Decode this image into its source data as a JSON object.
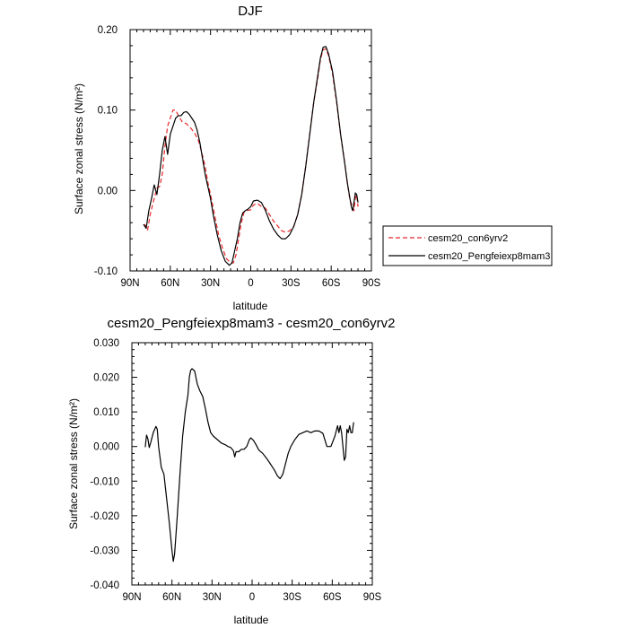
{
  "chart_data": [
    {
      "type": "line",
      "title": "DJF",
      "xlabel": "latitude",
      "ylabel": "Surface zonal stress (N/m²)",
      "xlim": [
        90,
        -90
      ],
      "ylim": [
        -0.1,
        0.2
      ],
      "x_ticks": [
        {
          "value": 90,
          "label": "90N"
        },
        {
          "value": 60,
          "label": "60N"
        },
        {
          "value": 30,
          "label": "30N"
        },
        {
          "value": 0,
          "label": "0"
        },
        {
          "value": -30,
          "label": "30S"
        },
        {
          "value": -60,
          "label": "60S"
        },
        {
          "value": -90,
          "label": "90S"
        }
      ],
      "y_ticks": [
        {
          "value": -0.1,
          "label": "-0.10"
        },
        {
          "value": 0.0,
          "label": "0.00"
        },
        {
          "value": 0.1,
          "label": "0.10"
        },
        {
          "value": 0.2,
          "label": "0.20"
        }
      ],
      "legend_position": "right",
      "series": [
        {
          "name": "cesm20_con6yrv2",
          "color": "#e8282a",
          "dash": true,
          "points": [
            [
              79,
              -0.042
            ],
            [
              77,
              -0.05
            ],
            [
              75,
              -0.03
            ],
            [
              72,
              -0.01
            ],
            [
              70,
              0.003
            ],
            [
              68,
              0.005
            ],
            [
              66,
              0.02
            ],
            [
              64,
              0.055
            ],
            [
              62,
              0.08
            ],
            [
              60,
              0.09
            ],
            [
              58,
              0.1
            ],
            [
              56,
              0.1
            ],
            [
              54,
              0.093
            ],
            [
              51,
              0.085
            ],
            [
              48,
              0.083
            ],
            [
              45,
              0.078
            ],
            [
              42,
              0.072
            ],
            [
              39,
              0.062
            ],
            [
              37,
              0.05
            ],
            [
              34,
              0.03
            ],
            [
              32,
              0.01
            ],
            [
              30,
              -0.005
            ],
            [
              27,
              -0.03
            ],
            [
              24,
              -0.055
            ],
            [
              21,
              -0.072
            ],
            [
              18,
              -0.085
            ],
            [
              15,
              -0.09
            ],
            [
              13,
              -0.09
            ],
            [
              11,
              -0.08
            ],
            [
              9,
              -0.06
            ],
            [
              7,
              -0.04
            ],
            [
              5,
              -0.027
            ],
            [
              3,
              -0.025
            ],
            [
              0,
              -0.024
            ],
            [
              -2,
              -0.018
            ],
            [
              -5,
              -0.016
            ],
            [
              -8,
              -0.02
            ],
            [
              -11,
              -0.022
            ],
            [
              -14,
              -0.03
            ],
            [
              -17,
              -0.038
            ],
            [
              -20,
              -0.044
            ],
            [
              -23,
              -0.05
            ],
            [
              -26,
              -0.052
            ],
            [
              -29,
              -0.05
            ],
            [
              -32,
              -0.045
            ],
            [
              -35,
              -0.03
            ],
            [
              -38,
              -0.005
            ],
            [
              -41,
              0.03
            ],
            [
              -44,
              0.07
            ],
            [
              -47,
              0.11
            ],
            [
              -50,
              0.14
            ],
            [
              -52,
              0.163
            ],
            [
              -54,
              0.175
            ],
            [
              -56,
              0.176
            ],
            [
              -58,
              0.168
            ],
            [
              -61,
              0.145
            ],
            [
              -64,
              0.11
            ],
            [
              -67,
              0.07
            ],
            [
              -70,
              0.035
            ],
            [
              -72,
              0.01
            ],
            [
              -74,
              -0.012
            ],
            [
              -76,
              -0.02
            ],
            [
              -77,
              -0.025
            ],
            [
              -78,
              -0.01
            ],
            [
              -79,
              -0.005
            ],
            [
              -80,
              -0.02
            ]
          ]
        },
        {
          "name": "cesm20_Pengfeiexp8mam3",
          "color": "#000000",
          "dash": false,
          "points": [
            [
              80,
              -0.042
            ],
            [
              78,
              -0.047
            ],
            [
              76,
              -0.025
            ],
            [
              74,
              -0.01
            ],
            [
              72,
              0.007
            ],
            [
              70,
              -0.005
            ],
            [
              68,
              0.02
            ],
            [
              66,
              0.05
            ],
            [
              64,
              0.067
            ],
            [
              62,
              0.045
            ],
            [
              60,
              0.07
            ],
            [
              58,
              0.08
            ],
            [
              56,
              0.09
            ],
            [
              54,
              0.093
            ],
            [
              52,
              0.093
            ],
            [
              50,
              0.097
            ],
            [
              48,
              0.098
            ],
            [
              46,
              0.095
            ],
            [
              44,
              0.09
            ],
            [
              42,
              0.085
            ],
            [
              40,
              0.075
            ],
            [
              38,
              0.06
            ],
            [
              36,
              0.04
            ],
            [
              34,
              0.02
            ],
            [
              32,
              0.005
            ],
            [
              30,
              -0.01
            ],
            [
              28,
              -0.03
            ],
            [
              25,
              -0.055
            ],
            [
              22,
              -0.075
            ],
            [
              19,
              -0.088
            ],
            [
              16,
              -0.093
            ],
            [
              14,
              -0.09
            ],
            [
              12,
              -0.075
            ],
            [
              10,
              -0.06
            ],
            [
              8,
              -0.04
            ],
            [
              6,
              -0.028
            ],
            [
              4,
              -0.025
            ],
            [
              2,
              -0.023
            ],
            [
              0,
              -0.02
            ],
            [
              -2,
              -0.013
            ],
            [
              -5,
              -0.012
            ],
            [
              -8,
              -0.015
            ],
            [
              -11,
              -0.025
            ],
            [
              -14,
              -0.038
            ],
            [
              -17,
              -0.048
            ],
            [
              -20,
              -0.055
            ],
            [
              -23,
              -0.06
            ],
            [
              -26,
              -0.06
            ],
            [
              -29,
              -0.055
            ],
            [
              -32,
              -0.045
            ],
            [
              -35,
              -0.03
            ],
            [
              -38,
              -0.005
            ],
            [
              -41,
              0.03
            ],
            [
              -44,
              0.07
            ],
            [
              -47,
              0.11
            ],
            [
              -50,
              0.143
            ],
            [
              -52,
              0.165
            ],
            [
              -54,
              0.178
            ],
            [
              -56,
              0.179
            ],
            [
              -58,
              0.17
            ],
            [
              -61,
              0.148
            ],
            [
              -64,
              0.112
            ],
            [
              -67,
              0.07
            ],
            [
              -70,
              0.035
            ],
            [
              -72,
              0.01
            ],
            [
              -74,
              -0.01
            ],
            [
              -75,
              -0.02
            ],
            [
              -76,
              -0.025
            ],
            [
              -77,
              -0.015
            ],
            [
              -78,
              -0.003
            ],
            [
              -79,
              -0.005
            ],
            [
              -80,
              -0.015
            ]
          ]
        }
      ]
    },
    {
      "type": "line",
      "title": "cesm20_Pengfeiexp8mam3 - cesm20_con6yrv2",
      "xlabel": "latitude",
      "ylabel": "Surface zonal stress (N/m²)",
      "xlim": [
        90,
        -90
      ],
      "ylim": [
        -0.04,
        0.03
      ],
      "x_ticks": [
        {
          "value": 90,
          "label": "90N"
        },
        {
          "value": 60,
          "label": "60N"
        },
        {
          "value": 30,
          "label": "30N"
        },
        {
          "value": 0,
          "label": "0"
        },
        {
          "value": -30,
          "label": "30S"
        },
        {
          "value": -60,
          "label": "60S"
        },
        {
          "value": -90,
          "label": "90S"
        }
      ],
      "y_ticks": [
        {
          "value": -0.04,
          "label": "-0.040"
        },
        {
          "value": -0.03,
          "label": "-0.030"
        },
        {
          "value": -0.02,
          "label": "-0.020"
        },
        {
          "value": -0.01,
          "label": "-0.010"
        },
        {
          "value": 0.0,
          "label": "0.000"
        },
        {
          "value": 0.01,
          "label": "0.010"
        },
        {
          "value": 0.02,
          "label": "0.020"
        },
        {
          "value": 0.03,
          "label": "0.030"
        }
      ],
      "series": [
        {
          "color": "#000000",
          "dash": false,
          "points": [
            [
              80,
              -0.0002
            ],
            [
              79,
              0.0033
            ],
            [
              78,
              0.0022
            ],
            [
              77,
              -0.0003
            ],
            [
              76,
              0.001
            ],
            [
              74,
              0.004
            ],
            [
              72,
              0.0058
            ],
            [
              71,
              0.005
            ],
            [
              70,
              0.0
            ],
            [
              68,
              -0.006
            ],
            [
              66,
              -0.008
            ],
            [
              64,
              -0.015
            ],
            [
              62,
              -0.022
            ],
            [
              60,
              -0.03
            ],
            [
              59,
              -0.0332
            ],
            [
              58,
              -0.031
            ],
            [
              56,
              -0.02
            ],
            [
              54,
              -0.008
            ],
            [
              52,
              0.003
            ],
            [
              50,
              0.01
            ],
            [
              48,
              0.015
            ],
            [
              47,
              0.02
            ],
            [
              46,
              0.022
            ],
            [
              45,
              0.0225
            ],
            [
              43,
              0.0218
            ],
            [
              41,
              0.018
            ],
            [
              39,
              0.016
            ],
            [
              37,
              0.0145
            ],
            [
              35,
              0.011
            ],
            [
              33,
              0.007
            ],
            [
              31,
              0.004
            ],
            [
              29,
              0.003
            ],
            [
              26,
              0.002
            ],
            [
              23,
              0.001
            ],
            [
              20,
              0.0005
            ],
            [
              18,
              0.0
            ],
            [
              16,
              -0.0003
            ],
            [
              14,
              -0.0012
            ],
            [
              13,
              -0.003
            ],
            [
              12,
              -0.0015
            ],
            [
              10,
              -0.0015
            ],
            [
              8,
              -0.0008
            ],
            [
              6,
              -0.0008
            ],
            [
              4,
              0.0
            ],
            [
              2,
              0.002
            ],
            [
              1,
              0.0025
            ],
            [
              -1,
              0.0018
            ],
            [
              -3,
              0.0005
            ],
            [
              -5,
              -0.001
            ],
            [
              -8,
              -0.002
            ],
            [
              -11,
              -0.0035
            ],
            [
              -14,
              -0.0052
            ],
            [
              -17,
              -0.007
            ],
            [
              -19,
              -0.0085
            ],
            [
              -21,
              -0.0093
            ],
            [
              -23,
              -0.008
            ],
            [
              -25,
              -0.005
            ],
            [
              -27,
              -0.002
            ],
            [
              -29,
              0.0
            ],
            [
              -32,
              0.002
            ],
            [
              -35,
              0.0035
            ],
            [
              -38,
              0.004
            ],
            [
              -41,
              0.0045
            ],
            [
              -44,
              0.004
            ],
            [
              -47,
              0.0045
            ],
            [
              -50,
              0.0045
            ],
            [
              -53,
              0.0038
            ],
            [
              -56,
              0.0
            ],
            [
              -59,
              0.0
            ],
            [
              -62,
              0.003
            ],
            [
              -64,
              0.006
            ],
            [
              -65,
              0.004
            ],
            [
              -66,
              0.006
            ],
            [
              -67,
              0.004
            ],
            [
              -68,
              0.0
            ],
            [
              -69,
              -0.004
            ],
            [
              -70,
              -0.003
            ],
            [
              -71,
              0.005
            ],
            [
              -72,
              0.004
            ],
            [
              -73,
              0.006
            ],
            [
              -74,
              0.004
            ],
            [
              -75,
              0.004
            ],
            [
              -76,
              0.007
            ]
          ]
        }
      ]
    }
  ]
}
